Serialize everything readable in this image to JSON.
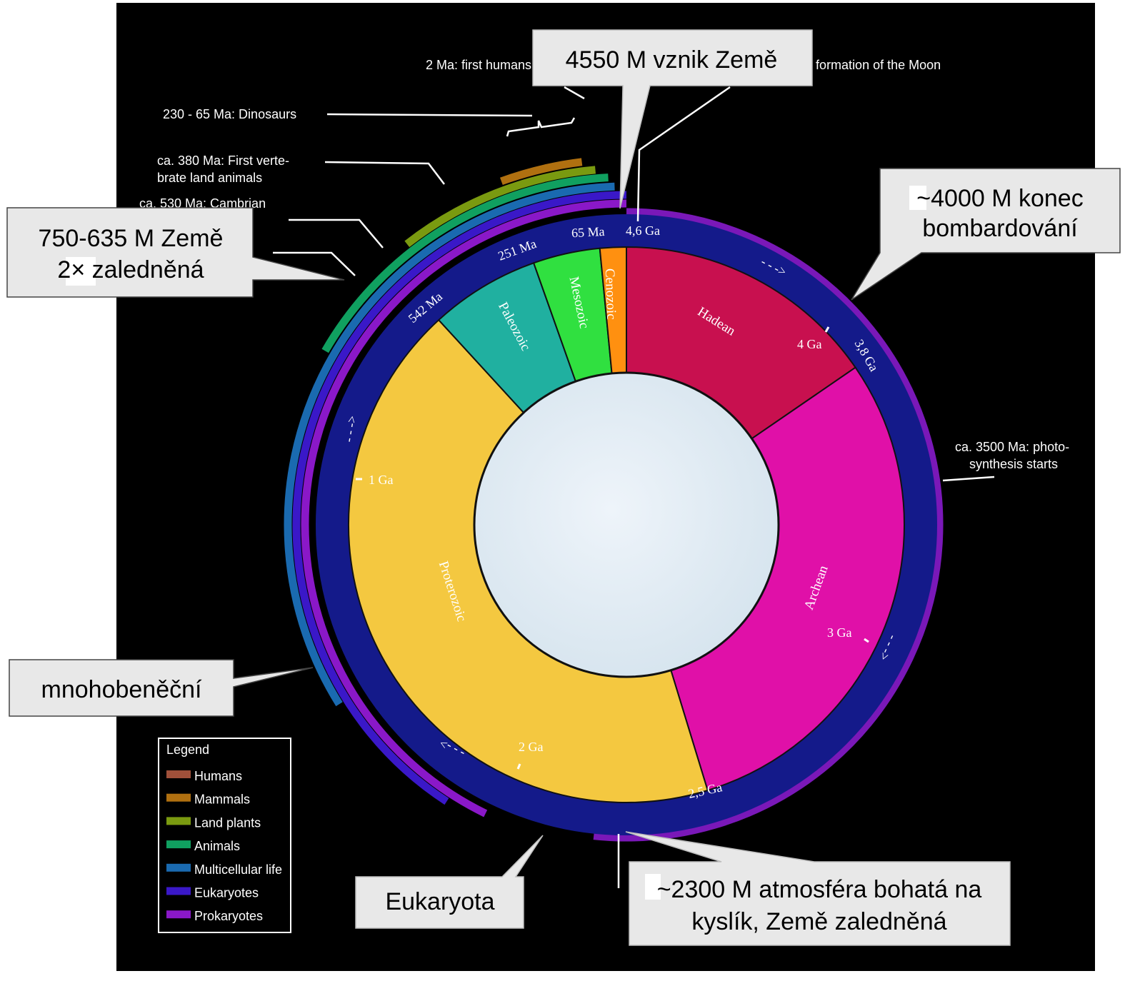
{
  "eras": [
    {
      "name": "Hadean",
      "color": "#c8104f"
    },
    {
      "name": "Archean",
      "color": "#e010a8"
    },
    {
      "name": "Proterozoic",
      "color": "#f4c840"
    },
    {
      "name": "Paleozoic",
      "color": "#20b0a0"
    },
    {
      "name": "Mesozoic",
      "color": "#30e040"
    },
    {
      "name": "Cenozoic",
      "color": "#ff9010"
    }
  ],
  "time_marks": {
    "ga_4_6": "4,6 Ga",
    "ga_4": "4 Ga",
    "ga_3_8": "3,8 Ga",
    "ga_3": "3 Ga",
    "ga_2_5": "2,5 Ga",
    "ga_2": "2 Ga",
    "ga_1": "1 Ga",
    "ma_542": "542 Ma",
    "ma_251": "251 Ma",
    "ma_65": "65 Ma"
  },
  "flow_arrow": "- - ->",
  "annotations": {
    "humans": "2 Ma: first humans",
    "moon": "4530 Ma: formation of the Moon",
    "dinosaurs": "230 - 65 Ma: Dinosaurs",
    "vertebrates_line1": "ca. 380 Ma: First verte-",
    "vertebrates_line2": "brate land animals",
    "cambrian": "ca. 530 Ma: Cambrian",
    "photosynthesis_line1": "ca. 3500 Ma: photo-",
    "photosynthesis_line2": "synthesis starts"
  },
  "callouts": {
    "earth_formation": "4550 M vznik Země",
    "bombardment_line1": "~4000 M konec",
    "bombardment_line2": "bombardování",
    "glaciation_line1": "750-635 M Země",
    "glaciation_line2": "2× zaledněná",
    "multicellular": "mnohobeněční",
    "eukaryota": "Eukaryota",
    "oxygen_line1": "~2300 M atmosféra bohatá na",
    "oxygen_line2": "kyslík, Země zaledněná"
  },
  "legend": {
    "title": "Legend",
    "items": [
      {
        "label": "Humans",
        "color": "#a0503a"
      },
      {
        "label": "Mammals",
        "color": "#b07010"
      },
      {
        "label": "Land plants",
        "color": "#7a9a10"
      },
      {
        "label": "Animals",
        "color": "#10a060"
      },
      {
        "label": "Multicellular life",
        "color": "#1a6ab0"
      },
      {
        "label": "Eukaryotes",
        "color": "#3a18c8"
      },
      {
        "label": "Prokaryotes",
        "color": "#8a18c8"
      }
    ]
  }
}
